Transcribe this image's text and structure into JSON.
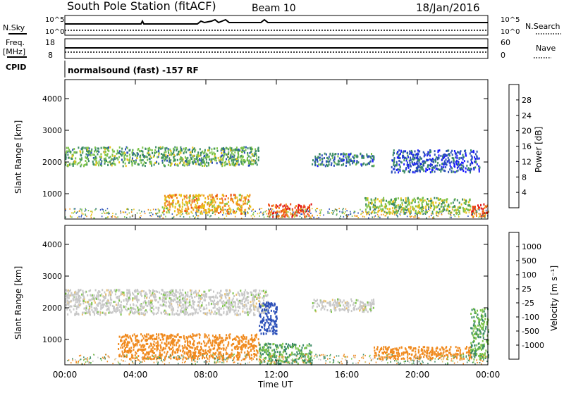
{
  "header": {
    "title": "South Pole Station (fitACF)",
    "beam": "Beam 10",
    "date": "18/Jan/2016"
  },
  "left_labels": {
    "nsky": "N.Sky",
    "freq": "Freq.",
    "mhz": "[MHz]",
    "cpid": "CPID"
  },
  "right_labels": {
    "nsearch": "N.Search",
    "nave": "Nave"
  },
  "noise_panel": {
    "ticks_left": [
      "10^5",
      "10^0"
    ],
    "ticks_right": [
      "10^5",
      "10^0"
    ]
  },
  "freq_panel": {
    "ticks_left": [
      "18",
      "8"
    ],
    "ticks_right": [
      "60",
      "0"
    ]
  },
  "cpid_text": "normalsound (fast) -157 RF",
  "colors": {
    "power_scale": [
      "#1a1aff",
      "#2b4fb8",
      "#3a8a64",
      "#7dc44a",
      "#e8c21a",
      "#f0901e",
      "#f04a14",
      "#e01010"
    ],
    "velocity_scale": [
      "#e01010",
      "#f04a14",
      "#f08a1e",
      "#e8c070",
      "#c8c8c8",
      "#7dc44a",
      "#3a8a64",
      "#2b4fb8",
      "#1a3fcf"
    ]
  },
  "chart_data": [
    {
      "type": "heatmap",
      "panel": "power",
      "ylabel": "Slant Range [km]",
      "yticks": [
        "1000",
        "2000",
        "3000",
        "4000"
      ],
      "ylim": [
        200,
        4600
      ],
      "xlim_hours": [
        0,
        24
      ],
      "xticks": [
        "00:00",
        "04:00",
        "08:00",
        "12:00",
        "16:00",
        "20:00",
        "00:00"
      ],
      "colorbar": {
        "label": "Power [dB]",
        "ticks": [
          "4",
          "8",
          "12",
          "16",
          "20",
          "24",
          "28"
        ]
      },
      "regions": [
        {
          "t0": 0.0,
          "t1": 11.0,
          "r0": 1900,
          "r1": 2500,
          "value": 14
        },
        {
          "t0": 5.5,
          "t1": 10.5,
          "r0": 400,
          "r1": 1000,
          "value": 22
        },
        {
          "t0": 11.5,
          "t1": 14.0,
          "r0": 300,
          "r1": 700,
          "value": 28
        },
        {
          "t0": 14.0,
          "t1": 17.5,
          "r0": 1900,
          "r1": 2300,
          "value": 10
        },
        {
          "t0": 17.0,
          "t1": 23.0,
          "r0": 400,
          "r1": 900,
          "value": 16
        },
        {
          "t0": 23.0,
          "t1": 24.0,
          "r0": 300,
          "r1": 700,
          "value": 28
        },
        {
          "t0": 18.5,
          "t1": 23.5,
          "r0": 1700,
          "r1": 2400,
          "value": 8
        }
      ],
      "grid": false
    },
    {
      "type": "heatmap",
      "panel": "velocity",
      "ylabel": "Slant Range [km]",
      "yticks": [
        "1000",
        "2000",
        "3000",
        "4000"
      ],
      "ylim": [
        200,
        4600
      ],
      "xlim_hours": [
        0,
        24
      ],
      "xticks": [
        "00:00",
        "04:00",
        "08:00",
        "12:00",
        "16:00",
        "20:00",
        "00:00"
      ],
      "xlabel": "Time UT",
      "colorbar": {
        "label": "Velocity [m s⁻¹]",
        "ticks": [
          "1000",
          "500",
          "100",
          "25",
          "-25",
          "-100",
          "-500",
          "-1000"
        ]
      },
      "regions": [
        {
          "t0": 0.0,
          "t1": 11.5,
          "r0": 1800,
          "r1": 2600,
          "value": 0
        },
        {
          "t0": 3.0,
          "t1": 11.0,
          "r0": 400,
          "r1": 1200,
          "value": -300
        },
        {
          "t0": 11.0,
          "t1": 14.0,
          "r0": 250,
          "r1": 900,
          "value": 100
        },
        {
          "t0": 11.0,
          "t1": 12.0,
          "r0": 1200,
          "r1": 2200,
          "value": 800
        },
        {
          "t0": 14.0,
          "t1": 17.5,
          "r0": 1900,
          "r1": 2300,
          "value": 0
        },
        {
          "t0": 17.5,
          "t1": 23.0,
          "r0": 400,
          "r1": 800,
          "value": -300
        },
        {
          "t0": 23.0,
          "t1": 24.0,
          "r0": 400,
          "r1": 2000,
          "value": 100
        }
      ],
      "grid": false
    }
  ]
}
